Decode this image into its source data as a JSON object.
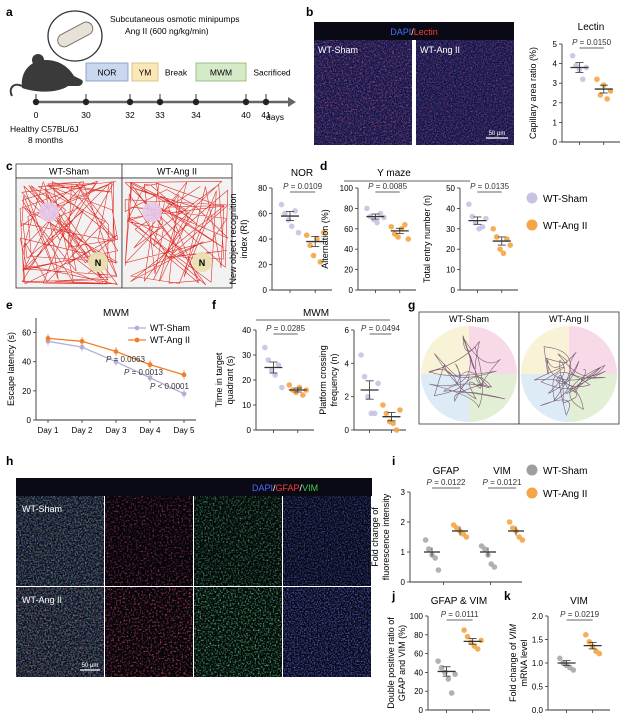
{
  "panels": {
    "a": {
      "label": "a",
      "pump_line1": "Subcutaneous osmotic minipumps",
      "pump_line2": "Ang II (600 ng/kg/min)",
      "stages": [
        "NOR",
        "YM",
        "Break",
        "MWM",
        "Sacrificed"
      ],
      "ticks": [
        "0",
        "30",
        "32",
        "33",
        "34",
        "40",
        "41"
      ],
      "unit": "days",
      "mouse_line1": "Healthy C57BL/6J",
      "mouse_line2": "8 months",
      "colors": {
        "NOR": "#c9d8ef",
        "YM": "#fbe7b8",
        "MWM": "#d5ebc8"
      }
    },
    "b": {
      "label": "b",
      "stain_dapi": "DAPI",
      "stain_sep": "/",
      "stain_lectin": "Lectin",
      "img_left": "WT-Sham",
      "img_right": "WT-Ang II",
      "scale": "50 μm",
      "title": "Lectin",
      "ylabel": "Capillary area ratio (%)",
      "p": "P = 0.0150",
      "yticks": [
        "0",
        "1",
        "2",
        "3",
        "4",
        "5"
      ]
    },
    "c": {
      "label": "c",
      "img_left": "WT-Sham",
      "img_right": "WT-Ang II",
      "obj": "N",
      "title": "NOR",
      "ylabel": "New object recognition index (RI)",
      "p": "P = 0.0109",
      "yticks": [
        "0",
        "20",
        "40",
        "60",
        "80"
      ]
    },
    "d": {
      "label": "d",
      "title": "Y maze",
      "ylabel1": "Alternation (%)",
      "ylabel2": "Total entry number (n)",
      "p1": "P = 0.0085",
      "p2": "P = 0.0135",
      "yticks1": [
        "0",
        "20",
        "40",
        "60",
        "80",
        "100"
      ],
      "yticks2": [
        "0",
        "10",
        "20",
        "30",
        "40",
        "50"
      ]
    },
    "legend_top": [
      "WT-Sham",
      "WT-Ang II"
    ],
    "e": {
      "label": "e",
      "title": "MWM",
      "ylabel": "Escape latency (s)",
      "series": [
        "WT-Sham",
        "WT-Ang II"
      ],
      "xticks": [
        "Day 1",
        "Day 2",
        "Day 3",
        "Day 4",
        "Day 5"
      ],
      "yticks": [
        "0",
        "20",
        "40",
        "60"
      ],
      "p1": "P = 0.0063",
      "p2": "P = 0.0013",
      "p3": "P < 0.0001"
    },
    "f": {
      "label": "f",
      "title": "MWM",
      "ylabel1": "Time in target quadrant (s)",
      "ylabel2": "Platform crossing frequency (n)",
      "p1": "P = 0.0285",
      "p2": "P = 0.0494",
      "yticks1": [
        "0",
        "10",
        "20",
        "30",
        "40"
      ],
      "yticks2": [
        "0",
        "2",
        "4",
        "6"
      ]
    },
    "g": {
      "label": "g",
      "img_left": "WT-Sham",
      "img_right": "WT-Ang II"
    },
    "h": {
      "label": "h",
      "stain_dapi": "DAPI",
      "stain_gfap": "GFAP",
      "stain_vim": "VIM",
      "row1": "WT-Sham",
      "row2": "WT-Ang II",
      "scale": "50 μm"
    },
    "i": {
      "label": "i",
      "title1": "GFAP",
      "title2": "VIM",
      "ylabel": "Fold change of fluorescence intensity",
      "p1": "P = 0.0122",
      "p2": "P = 0.0121",
      "yticks": [
        "0",
        "1",
        "2",
        "3"
      ],
      "legend": [
        "WT-Sham",
        "WT-Ang II"
      ]
    },
    "j": {
      "label": "j",
      "title": "GFAP & VIM",
      "ylabel": "Double positive ratio of GFAP and VIM (%)",
      "p": "P = 0.0111",
      "yticks": [
        "0",
        "20",
        "40",
        "60",
        "80",
        "100"
      ]
    },
    "k": {
      "label": "k",
      "title": "VIM",
      "ylabel_pre": "Fold change of ",
      "ylabel_ital": "VIM",
      "ylabel2": "mRNA level",
      "p": "P = 0.0219",
      "yticks": [
        "0.0",
        "0.5",
        "1.0",
        "1.5",
        "2.0"
      ]
    }
  },
  "colors": {
    "sham": "#a8a3cf",
    "angii": "#f4a545",
    "sham_gray": "#9e9e9e",
    "p_text": "#333333"
  },
  "chart_data": [
    {
      "type": "scatter",
      "id": "b",
      "categories": [
        "WT-Sham",
        "WT-Ang II"
      ],
      "means": [
        3.8,
        2.7
      ],
      "points": [
        [
          4.4,
          3.9,
          3.7,
          3.2,
          3.8
        ],
        [
          3.2,
          2.4,
          2.9,
          2.2,
          2.6
        ]
      ],
      "ylim": [
        0,
        5
      ],
      "title": "Lectin",
      "ylabel": "Capillary area ratio (%)"
    },
    {
      "type": "scatter",
      "id": "c",
      "categories": [
        "WT-Sham",
        "WT-Ang II"
      ],
      "means": [
        58,
        38
      ],
      "points": [
        [
          67,
          60,
          55,
          50,
          62,
          45
        ],
        [
          43,
          35,
          27,
          40,
          22,
          45
        ]
      ],
      "ylim": [
        0,
        80
      ],
      "title": "NOR",
      "ylabel": "New object recognition index (RI)"
    },
    {
      "type": "scatter",
      "id": "d1",
      "categories": [
        "WT-Sham",
        "WT-Ang II"
      ],
      "means": [
        72,
        58
      ],
      "points": [
        [
          80,
          72,
          69,
          66,
          75,
          71
        ],
        [
          62,
          55,
          52,
          60,
          64,
          50
        ]
      ],
      "ylim": [
        0,
        100
      ],
      "ylabel": "Alternation (%)"
    },
    {
      "type": "scatter",
      "id": "d2",
      "categories": [
        "WT-Sham",
        "WT-Ang II"
      ],
      "means": [
        34,
        24
      ],
      "points": [
        [
          42,
          36,
          33,
          30,
          31,
          35
        ],
        [
          30,
          26,
          20,
          18,
          25,
          22
        ]
      ],
      "ylim": [
        0,
        50
      ],
      "ylabel": "Total entry number (n)"
    },
    {
      "type": "line",
      "id": "e",
      "x": [
        "Day 1",
        "Day 2",
        "Day 3",
        "Day 4",
        "Day 5"
      ],
      "series": [
        {
          "name": "WT-Sham",
          "values": [
            54,
            50,
            40,
            29,
            18
          ]
        },
        {
          "name": "WT-Ang II",
          "values": [
            56,
            54,
            47,
            38,
            31
          ]
        }
      ],
      "ylim": [
        0,
        70
      ],
      "title": "MWM",
      "ylabel": "Escape latency (s)"
    },
    {
      "type": "scatter",
      "id": "f1",
      "categories": [
        "WT-Sham",
        "WT-Ang II"
      ],
      "means": [
        25,
        16
      ],
      "points": [
        [
          33,
          28,
          24,
          22,
          26,
          17
        ],
        [
          18,
          16,
          15,
          17,
          14,
          16
        ]
      ],
      "ylim": [
        0,
        40
      ],
      "ylabel": "Time in target quadrant (s)"
    },
    {
      "type": "scatter",
      "id": "f2",
      "categories": [
        "WT-Sham",
        "WT-Ang II"
      ],
      "means": [
        2.4,
        0.8
      ],
      "points": [
        [
          4.5,
          3.2,
          2.0,
          1.0,
          1.0,
          2.8
        ],
        [
          1.5,
          1.0,
          0.5,
          0.4,
          0.0,
          1.2
        ]
      ],
      "ylim": [
        0,
        6
      ],
      "ylabel": "Platform crossing frequency (n)"
    },
    {
      "type": "scatter",
      "id": "i1",
      "categories": [
        "WT-Sham",
        "WT-Ang II"
      ],
      "means": [
        1.0,
        1.7
      ],
      "points": [
        [
          1.4,
          1.1,
          0.9,
          0.8,
          0.4
        ],
        [
          1.9,
          1.8,
          1.7,
          1.6,
          1.5
        ]
      ],
      "ylim": [
        0,
        3
      ],
      "title": "GFAP"
    },
    {
      "type": "scatter",
      "id": "i2",
      "categories": [
        "WT-Sham",
        "WT-Ang II"
      ],
      "means": [
        1.0,
        1.7
      ],
      "points": [
        [
          1.2,
          1.1,
          0.9,
          0.6,
          0.5
        ],
        [
          2.0,
          1.8,
          1.7,
          1.5,
          1.4
        ]
      ],
      "ylim": [
        0,
        3
      ],
      "title": "VIM"
    },
    {
      "type": "scatter",
      "id": "j",
      "categories": [
        "WT-Sham",
        "WT-Ang II"
      ],
      "means": [
        41,
        73
      ],
      "points": [
        [
          52,
          45,
          40,
          33,
          18,
          38
        ],
        [
          85,
          78,
          72,
          68,
          65,
          74
        ]
      ],
      "ylim": [
        0,
        100
      ],
      "title": "GFAP & VIM"
    },
    {
      "type": "scatter",
      "id": "k",
      "categories": [
        "WT-Sham",
        "WT-Ang II"
      ],
      "means": [
        1.0,
        1.37
      ],
      "points": [
        [
          1.1,
          1.0,
          0.95,
          0.9,
          0.85
        ],
        [
          1.6,
          1.45,
          1.35,
          1.25,
          1.2
        ]
      ],
      "ylim": [
        0,
        2
      ],
      "title": "VIM",
      "ylabel": "Fold change of VIM mRNA level"
    }
  ]
}
